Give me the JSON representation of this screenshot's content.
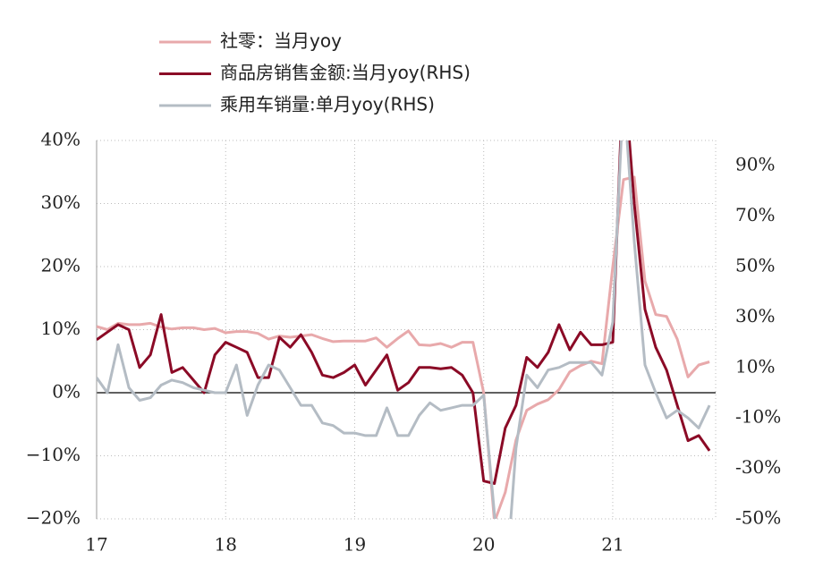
{
  "chart_data": {
    "type": "line",
    "categories": [
      "17",
      null,
      null,
      null,
      null,
      null,
      null,
      null,
      null,
      null,
      null,
      null,
      "18",
      null,
      null,
      null,
      null,
      null,
      null,
      null,
      null,
      null,
      null,
      null,
      "19",
      null,
      null,
      null,
      null,
      null,
      null,
      null,
      null,
      null,
      null,
      null,
      "20",
      null,
      null,
      null,
      null,
      null,
      null,
      null,
      null,
      null,
      null,
      null,
      "21",
      null,
      null,
      null,
      null,
      null,
      null,
      null,
      null,
      null
    ],
    "series": [
      {
        "name": "社零：当月yoy",
        "color": "#e8a9ab",
        "values": [
          10.5,
          10,
          11,
          10.8,
          10.8,
          11,
          10.4,
          10.1,
          10.3,
          10.3,
          10,
          10.2,
          9.5,
          9.7,
          9.7,
          9.4,
          8.5,
          9.0,
          8.8,
          9.0,
          9.2,
          8.6,
          8.1,
          8.2,
          8.2,
          8.2,
          8.7,
          7.2,
          8.6,
          9.8,
          7.6,
          7.5,
          7.8,
          7.2,
          8.0,
          8.0,
          0,
          -20.5,
          -15.8,
          -7.5,
          -2.8,
          -1.8,
          -1.1,
          0.5,
          3.3,
          4.3,
          5.0,
          4.6,
          20,
          33.8,
          34.2,
          17.7,
          12.4,
          12.1,
          8.5,
          2.5,
          4.4,
          4.9
        ]
      },
      {
        "name": "商品房销售金额:当月yoy(RHS)",
        "color": "#8b0a26",
        "axis": "y2",
        "values": [
          21,
          24,
          27,
          25,
          10,
          15,
          31,
          8,
          10,
          5,
          0,
          15,
          20,
          18,
          16,
          6,
          6,
          22,
          18,
          23,
          16,
          7,
          6,
          8,
          11,
          3,
          9,
          15,
          1,
          4,
          10,
          10,
          9.5,
          10,
          7,
          0,
          -35,
          -36,
          -14,
          -5,
          14,
          10,
          16,
          27,
          17,
          24,
          19,
          19,
          20,
          130,
          75,
          33,
          18,
          9,
          -5,
          -19,
          -17,
          -23
        ]
      },
      {
        "name": "乘用车销量:单月yoy(RHS)",
        "color": "#b4bcc4",
        "axis": "y2",
        "values": [
          6,
          0,
          19,
          2,
          -3,
          -2,
          3,
          5,
          4,
          2,
          1,
          0,
          0,
          11,
          -9,
          3,
          11,
          9,
          2,
          -5,
          -5,
          -12,
          -13,
          -16,
          -16,
          -17,
          -17,
          -6,
          -17,
          -17,
          -9,
          -4,
          -7,
          -6,
          -5,
          -5,
          -1,
          -48,
          -80,
          -22,
          7,
          2,
          9,
          10,
          12,
          12,
          12,
          7,
          28,
          120,
          60,
          11,
          0,
          -10,
          -7,
          -10,
          -14,
          -5
        ]
      }
    ],
    "ylim": [
      -20,
      40
    ],
    "yticks": [
      {
        "value": -20,
        "label": "−20%"
      },
      {
        "value": -10,
        "label": "−10%"
      },
      {
        "value": 0,
        "label": "0%"
      },
      {
        "value": 10,
        "label": "10%"
      },
      {
        "value": 20,
        "label": "20%"
      },
      {
        "value": 30,
        "label": "30%"
      },
      {
        "value": 40,
        "label": "40%"
      }
    ],
    "y2lim": [
      -50,
      100
    ],
    "y2ticks": [
      {
        "value": -50,
        "label": "-50%"
      },
      {
        "value": -30,
        "label": "-30%"
      },
      {
        "value": -10,
        "label": "-10%"
      },
      {
        "value": 10,
        "label": "10%"
      },
      {
        "value": 30,
        "label": "30%"
      },
      {
        "value": 50,
        "label": "50%"
      },
      {
        "value": 70,
        "label": "70%"
      },
      {
        "value": 90,
        "label": "90%"
      }
    ],
    "grid": true
  }
}
